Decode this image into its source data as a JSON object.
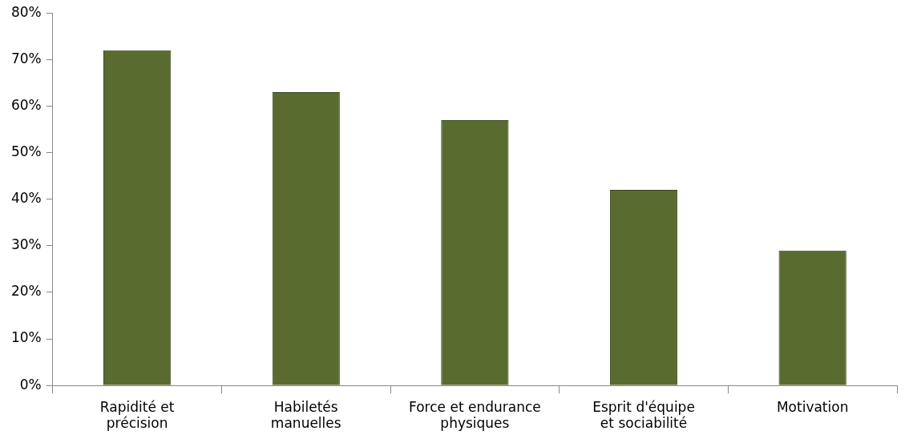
{
  "chart_data": {
    "type": "bar",
    "categories": [
      "Rapidité et précision",
      "Habiletés manuelles",
      "Force et endurance physiques",
      "Esprit d'équipe et sociabilité",
      "Motivation"
    ],
    "values": [
      72,
      63,
      57,
      42,
      29
    ],
    "color": "#5a6b2f",
    "ylim": [
      0,
      80
    ],
    "yticks": [
      {
        "value": 0,
        "label": "0%"
      },
      {
        "value": 10,
        "label": "10%"
      },
      {
        "value": 20,
        "label": "20%"
      },
      {
        "value": 30,
        "label": "30%"
      },
      {
        "value": 40,
        "label": "40%"
      },
      {
        "value": 50,
        "label": "50%"
      },
      {
        "value": 60,
        "label": "60%"
      },
      {
        "value": 70,
        "label": "70%"
      },
      {
        "value": 80,
        "label": "80%"
      }
    ],
    "grid": false,
    "legend": false
  }
}
